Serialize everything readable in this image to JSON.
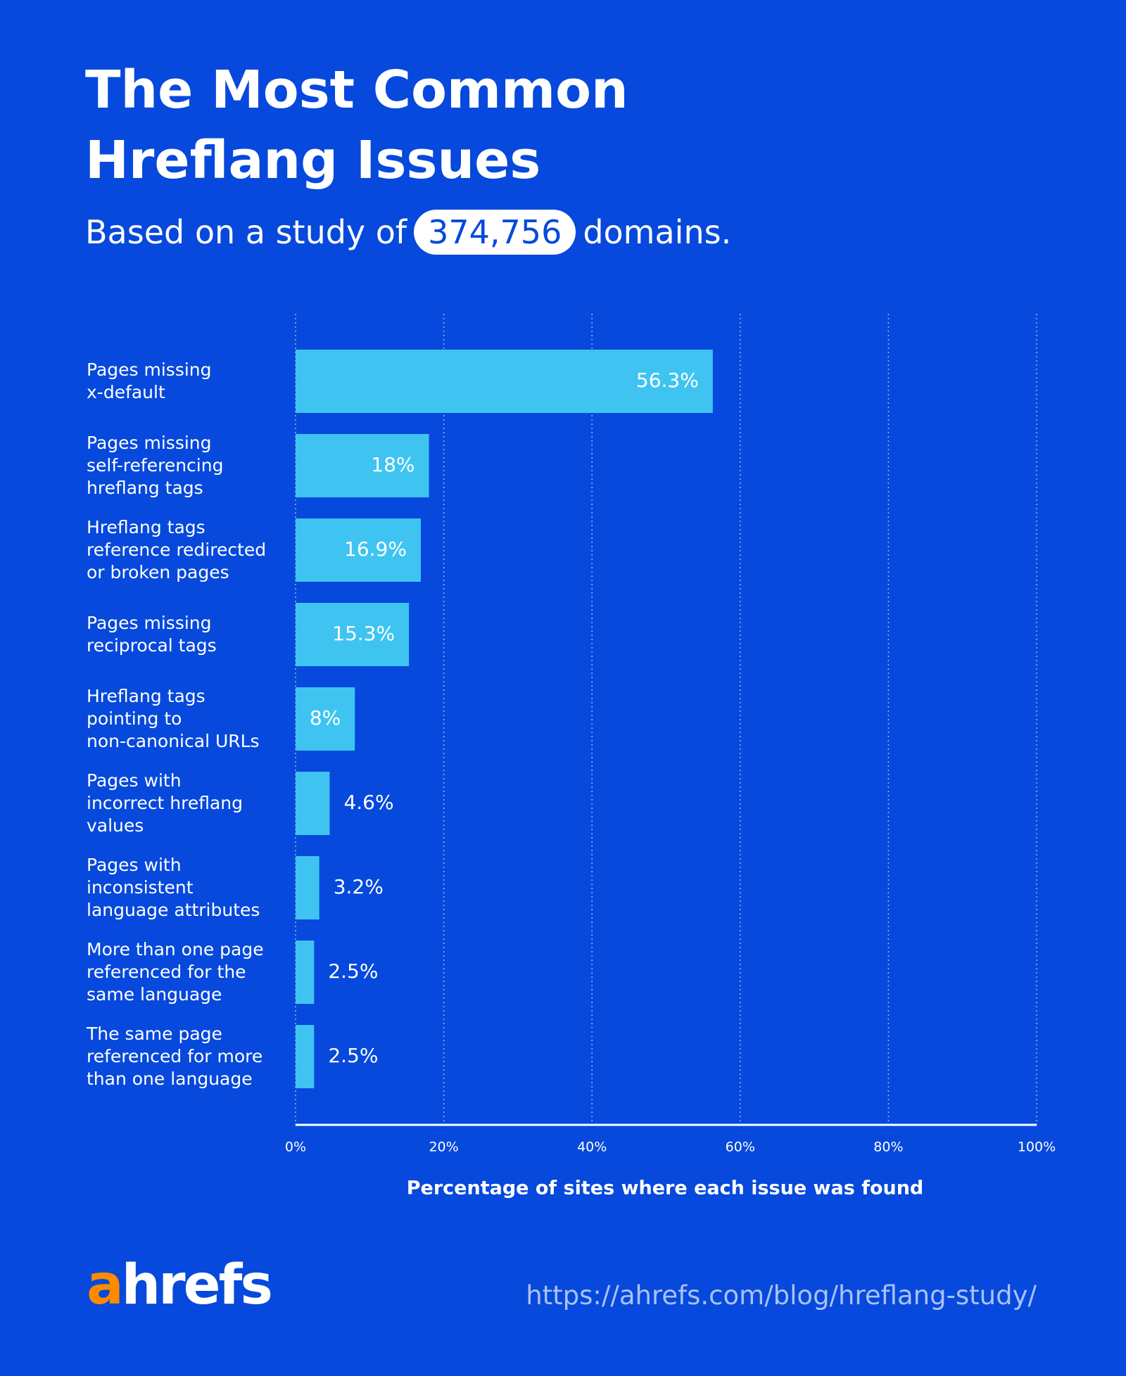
{
  "chart_data": {
    "type": "barh",
    "title": "The Most Common\nHreflang Issues",
    "subtitle_before": "Based on a study of",
    "subtitle_highlight": "374,756",
    "subtitle_after": "domains.",
    "categories": [
      "Pages missing\nx-default",
      "Pages missing\nself-referencing\nhreflang tags",
      "Hreflang tags\nreference redirected\nor broken pages",
      "Pages missing\nreciprocal tags",
      "Hreflang tags\npointing to\nnon-canonical URLs",
      "Pages with\nincorrect hreflang\nvalues",
      "Pages with\ninconsistent\nlanguage attributes",
      "More than one page\nreferenced for the\nsame language",
      "The same page\nreferenced for more\nthan one language"
    ],
    "values": [
      56.3,
      18,
      16.9,
      15.3,
      8,
      4.6,
      3.2,
      2.5,
      2.5
    ],
    "value_labels": [
      "56.3%",
      "18%",
      "16.9%",
      "15.3%",
      "8%",
      "4.6%",
      "3.2%",
      "2.5%",
      "2.5%"
    ],
    "color": "#3fc4f2",
    "xlim": [
      0,
      100
    ],
    "xticks": [
      {
        "value": 0,
        "label": "0%"
      },
      {
        "value": 20,
        "label": "20%"
      },
      {
        "value": 40,
        "label": "40%"
      },
      {
        "value": 60,
        "label": "60%"
      },
      {
        "value": 80,
        "label": "80%"
      },
      {
        "value": 100,
        "label": "100%"
      }
    ],
    "grid": true,
    "x_label": "Percentage of sites where each issue was found",
    "logo_accent": "a",
    "logo_rest": "hrefs",
    "source_url": "https://ahrefs.com/blog/hreflang-study/"
  }
}
